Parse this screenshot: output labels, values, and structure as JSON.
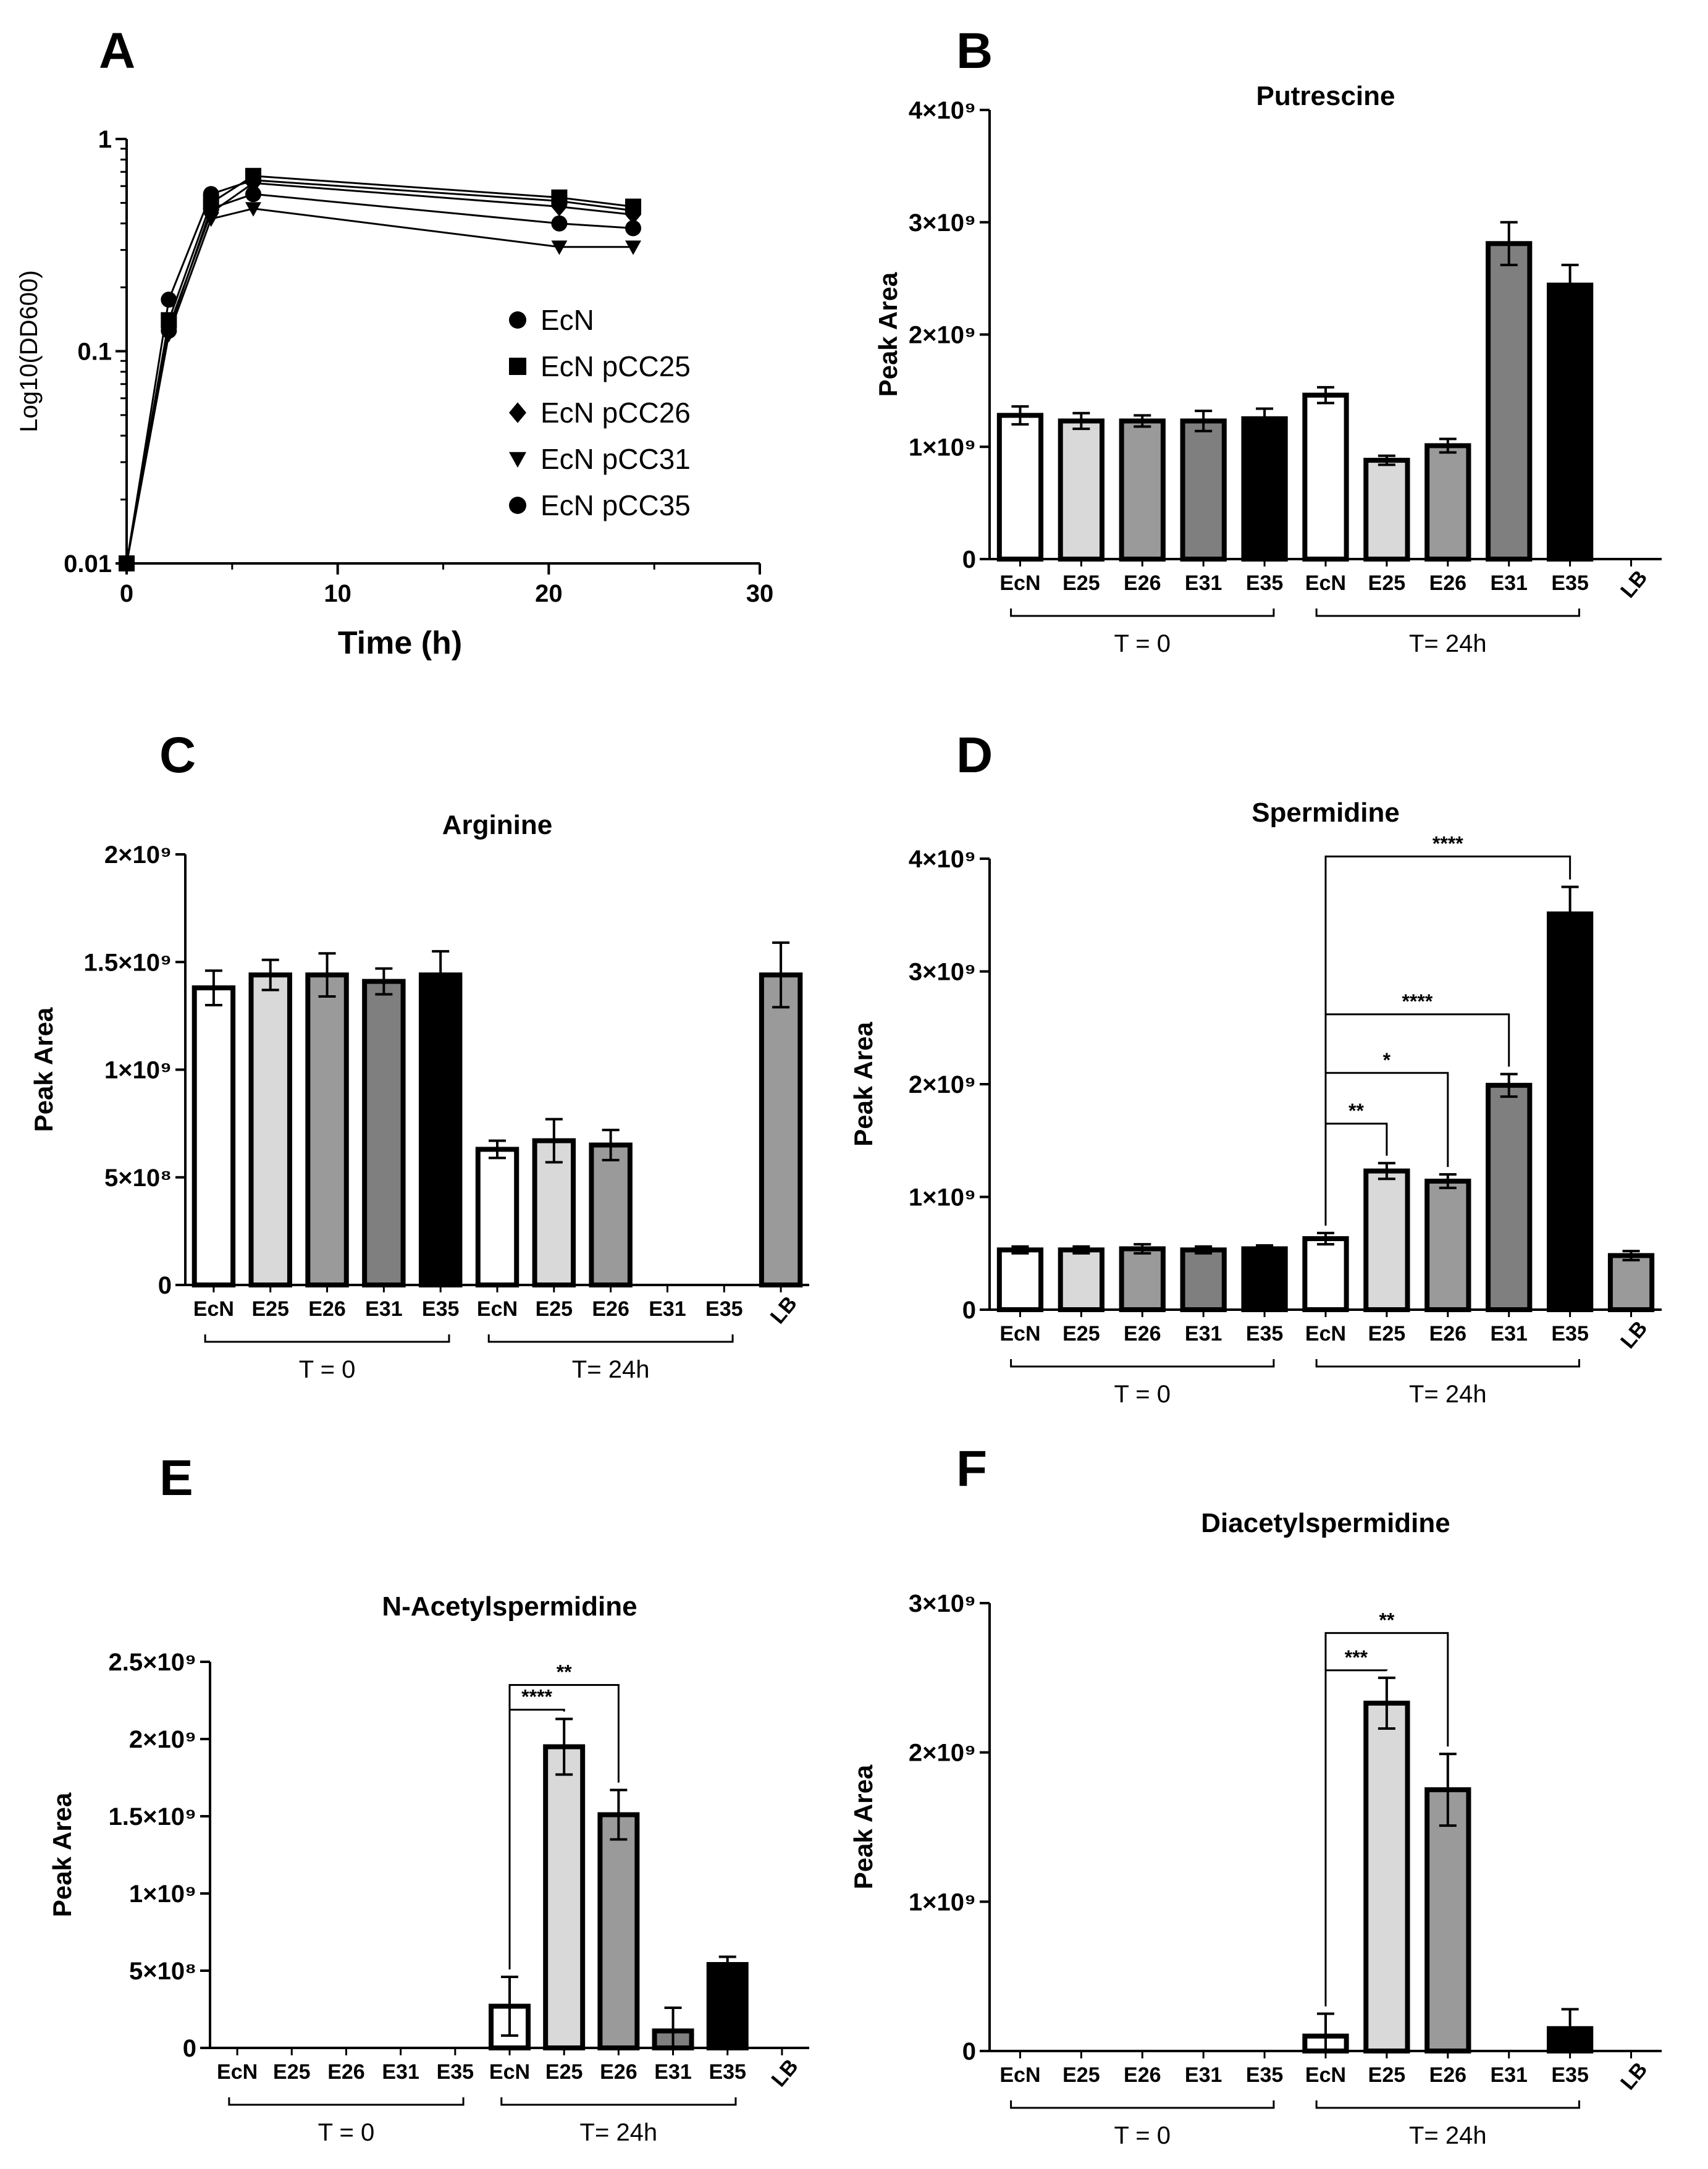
{
  "chart_data": [
    {
      "panel": "A",
      "type": "line",
      "title": "",
      "xlabel": "Time (h)",
      "ylabel": "Log10(DD600)",
      "yscale": "log",
      "xlim": [
        0,
        30
      ],
      "ylim": [
        0.01,
        1
      ],
      "xticks": [
        "0",
        "10",
        "20",
        "30"
      ],
      "yticks": [
        "0.01",
        "0.1",
        "1"
      ],
      "legend_position": "right",
      "series": [
        {
          "name": "EcN",
          "marker": "circle",
          "x": [
            0,
            2,
            4,
            6,
            20.5,
            24
          ],
          "y": [
            0.01,
            0.175,
            0.55,
            0.64,
            0.51,
            0.46
          ]
        },
        {
          "name": "EcN pCC25",
          "marker": "square",
          "x": [
            0,
            2,
            4,
            6,
            20.5,
            24
          ],
          "y": [
            0.01,
            0.14,
            0.5,
            0.67,
            0.53,
            0.48
          ]
        },
        {
          "name": "EcN pCC26",
          "marker": "diamond",
          "x": [
            0,
            2,
            4,
            6,
            20.5,
            24
          ],
          "y": [
            0.01,
            0.13,
            0.45,
            0.62,
            0.48,
            0.44
          ]
        },
        {
          "name": "EcN pCC31",
          "marker": "triangle-down",
          "x": [
            0,
            2,
            4,
            6,
            20.5,
            24
          ],
          "y": [
            0.01,
            0.12,
            0.42,
            0.47,
            0.31,
            0.31
          ]
        },
        {
          "name": "EcN pCC35",
          "marker": "hexagon",
          "x": [
            0,
            2,
            4,
            6,
            20.5,
            24
          ],
          "y": [
            0.01,
            0.125,
            0.47,
            0.55,
            0.4,
            0.38
          ]
        }
      ]
    },
    {
      "panel": "B",
      "type": "bar",
      "title": "Putrescine",
      "ylabel": "Peak Area",
      "ylim": [
        0,
        4000000000
      ],
      "yticks": [
        "0",
        "1×10⁹",
        "2×10⁹",
        "3×10⁹",
        "4×10⁹"
      ],
      "categories": [
        "EcN",
        "E25",
        "E26",
        "E31",
        "E35",
        "EcN",
        "E25",
        "E26",
        "E31",
        "E35",
        "LB"
      ],
      "groups": [
        "T = 0",
        "T= 24h"
      ],
      "values": [
        1280000000,
        1230000000,
        1230000000,
        1230000000,
        1250000000,
        1460000000,
        880000000,
        1010000000,
        2810000000,
        2440000000,
        0
      ],
      "errors": [
        80000000,
        70000000,
        50000000,
        90000000,
        90000000,
        70000000,
        40000000,
        60000000,
        190000000,
        180000000,
        0
      ],
      "significance": []
    },
    {
      "panel": "C",
      "type": "bar",
      "title": "Arginine",
      "ylabel": "Peak Area",
      "ylim": [
        0,
        2000000000
      ],
      "yticks": [
        "0",
        "5×10⁸",
        "1×10⁹",
        "1.5×10⁹",
        "2×10⁹"
      ],
      "categories": [
        "EcN",
        "E25",
        "E26",
        "E31",
        "E35",
        "EcN",
        "E25",
        "E26",
        "E31",
        "E35",
        "LB"
      ],
      "groups": [
        "T = 0",
        "T= 24h"
      ],
      "values": [
        1380000000,
        1440000000,
        1440000000,
        1410000000,
        1440000000,
        630000000,
        670000000,
        650000000,
        0,
        0,
        1440000000
      ],
      "errors": [
        80000000,
        70000000,
        100000000,
        60000000,
        110000000,
        40000000,
        100000000,
        70000000,
        0,
        0,
        150000000
      ],
      "significance": []
    },
    {
      "panel": "D",
      "type": "bar",
      "title": "Spermidine",
      "ylabel": "Peak Area",
      "ylim": [
        0,
        4000000000
      ],
      "yticks": [
        "0",
        "1×10⁹",
        "2×10⁹",
        "3×10⁹",
        "4×10⁹"
      ],
      "categories": [
        "EcN",
        "E25",
        "E26",
        "E31",
        "E35",
        "EcN",
        "E25",
        "E26",
        "E31",
        "E35",
        "LB"
      ],
      "groups": [
        "T = 0",
        "T= 24h"
      ],
      "values": [
        530000000,
        530000000,
        540000000,
        530000000,
        540000000,
        630000000,
        1230000000,
        1140000000,
        1990000000,
        3510000000,
        480000000
      ],
      "errors": [
        30000000,
        30000000,
        40000000,
        30000000,
        30000000,
        50000000,
        70000000,
        60000000,
        100000000,
        240000000,
        40000000
      ],
      "significance": [
        {
          "from": 5,
          "to": 6,
          "label": "**",
          "y": 1650000000
        },
        {
          "from": 5,
          "to": 7,
          "label": "*",
          "y": 2100000000
        },
        {
          "from": 5,
          "to": 8,
          "label": "****",
          "y": 2620000000
        },
        {
          "from": 5,
          "to": 9,
          "label": "****",
          "y": 4020000000
        }
      ]
    },
    {
      "panel": "E",
      "type": "bar",
      "title": "N-Acetylspermidine",
      "ylabel": "Peak Area",
      "ylim": [
        0,
        2500000000
      ],
      "yticks": [
        "0",
        "5×10⁸",
        "1×10⁹",
        "1.5×10⁹",
        "2×10⁹",
        "2.5×10⁹"
      ],
      "categories": [
        "EcN",
        "E25",
        "E26",
        "E31",
        "E35",
        "EcN",
        "E25",
        "E26",
        "E31",
        "E35",
        "LB"
      ],
      "groups": [
        "T = 0",
        "T= 24h"
      ],
      "values": [
        0,
        0,
        0,
        0,
        0,
        270000000,
        1950000000,
        1510000000,
        110000000,
        540000000,
        0
      ],
      "errors": [
        0,
        0,
        0,
        0,
        0,
        190000000,
        180000000,
        160000000,
        150000000,
        50000000,
        0
      ],
      "significance": [
        {
          "from": 5,
          "to": 6,
          "label": "****",
          "y": 2190000000
        },
        {
          "from": 5,
          "to": 7,
          "label": "**",
          "y": 2350000000
        }
      ]
    },
    {
      "panel": "F",
      "type": "bar",
      "title": "Diacetylspermidine",
      "ylabel": "Peak Area",
      "ylim": [
        0,
        3000000000
      ],
      "yticks": [
        "0",
        "1×10⁹",
        "2×10⁹",
        "3×10⁹"
      ],
      "categories": [
        "EcN",
        "E25",
        "E26",
        "E31",
        "E35",
        "EcN",
        "E25",
        "E26",
        "E31",
        "E35",
        "LB"
      ],
      "groups": [
        "T = 0",
        "T= 24h"
      ],
      "values": [
        0,
        0,
        0,
        0,
        0,
        100000000,
        2330000000,
        1750000000,
        0,
        150000000,
        0
      ],
      "errors": [
        0,
        0,
        0,
        0,
        0,
        150000000,
        170000000,
        240000000,
        0,
        130000000,
        0
      ],
      "significance": [
        {
          "from": 5,
          "to": 6,
          "label": "***",
          "y": 2550000000
        },
        {
          "from": 5,
          "to": 7,
          "label": "**",
          "y": 2800000000
        }
      ]
    }
  ],
  "colors": {
    "bars": [
      "#ffffff",
      "#d9d9d9",
      "#9a9a9a",
      "#7f7f7f",
      "#000000",
      "#ffffff",
      "#d9d9d9",
      "#9a9a9a",
      "#7f7f7f",
      "#000000",
      "#9a9a9a"
    ],
    "stroke": "#000000"
  }
}
